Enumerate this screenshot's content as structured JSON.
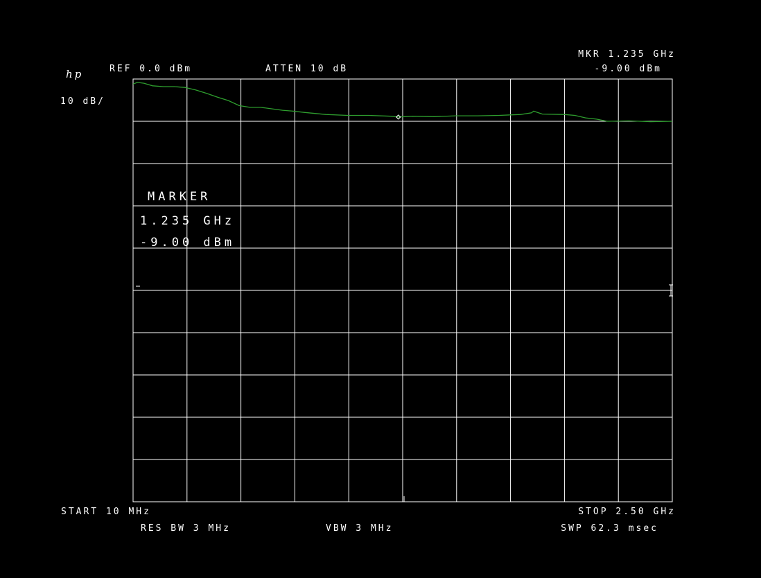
{
  "header": {
    "logo": "hp",
    "ref_level": "REF  0.0 dBm",
    "attenuation": "ATTEN 10 dB",
    "marker_freq": "MKR 1.235 GHz",
    "marker_level": "-9.00 dBm",
    "scale": "10 dB/"
  },
  "marker_box": {
    "title": "MARKER",
    "freq": "1.235 GHz",
    "level": "-9.00 dBm"
  },
  "footer": {
    "start": "START 10 MHz",
    "stop": "STOP 2.50 GHz",
    "res_bw": "RES BW 3 MHz",
    "vbw": "VBW 3 MHz",
    "sweep": "SWP 62.3 msec"
  },
  "colors": {
    "background": "#000000",
    "graticule": "#ffffff",
    "trace": "#2e9e2e"
  },
  "chart_data": {
    "type": "line",
    "xlim": [
      10,
      2500
    ],
    "ylim": [
      -100,
      0
    ],
    "x_unit": "MHz",
    "y_unit": "dBm",
    "grid": true,
    "marker": {
      "x": 1235,
      "y": -9.0
    },
    "series": [
      {
        "x": [
          10,
          30,
          60,
          100,
          150,
          200,
          250,
          300,
          350,
          400,
          450,
          500,
          550,
          600,
          700,
          750,
          800,
          900,
          1000,
          1100,
          1200,
          1235,
          1300,
          1400,
          1500,
          1600,
          1700,
          1800,
          1850,
          1860,
          1900,
          2000,
          2050,
          2100,
          2150,
          2200,
          2300,
          2400,
          2500
        ],
        "y": [
          -1.2,
          -0.8,
          -1.0,
          -1.6,
          -1.8,
          -1.8,
          -2.0,
          -2.6,
          -3.4,
          -4.3,
          -5.1,
          -6.3,
          -6.7,
          -6.7,
          -7.4,
          -7.6,
          -7.9,
          -8.4,
          -8.6,
          -8.6,
          -8.8,
          -9.0,
          -8.8,
          -8.9,
          -8.7,
          -8.7,
          -8.6,
          -8.4,
          -8.0,
          -7.6,
          -8.3,
          -8.4,
          -8.6,
          -9.2,
          -9.5,
          -10.0,
          -9.9,
          -10.1,
          -10.0
        ]
      }
    ]
  }
}
